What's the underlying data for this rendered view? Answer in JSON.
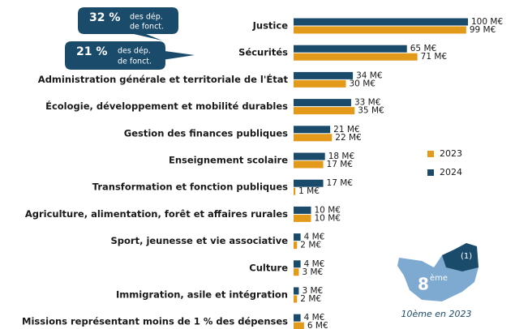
{
  "chart_data": {
    "type": "barh",
    "categories": [
      "Justice",
      "Sécurités",
      "Administration générale et territoriale de l'État",
      "Écologie, développement et mobilité durables",
      "Gestion des finances publiques",
      "Enseignement scolaire",
      "Transformation et fonction publiques",
      "Agriculture, alimentation, forêt et affaires rurales",
      "Sport, jeunesse et vie associative",
      "Culture",
      "Immigration, asile et intégration",
      "Missions représentant moins de 1 % des dépenses"
    ],
    "series": [
      {
        "name": "2023",
        "color": "#e39a1a",
        "values": [
          99,
          71,
          30,
          35,
          22,
          17,
          1,
          10,
          2,
          3,
          2,
          6
        ],
        "value_labels": [
          "99 M€",
          "71 M€",
          "30 M€",
          "35 M€",
          "22 M€",
          "17 M€",
          "1 M€",
          "10 M€",
          "2 M€",
          "3 M€",
          "2 M€",
          "6 M€"
        ]
      },
      {
        "name": "2024",
        "color": "#1b4b6b",
        "values": [
          100,
          65,
          34,
          33,
          21,
          18,
          17,
          10,
          4,
          4,
          3,
          4
        ],
        "value_labels": [
          "100 M€",
          "65 M€",
          "34 M€",
          "33 M€",
          "21 M€",
          "18 M€",
          "17 M€",
          "10 M€",
          "4 M€",
          "4 M€",
          "3 M€",
          "4 M€"
        ]
      }
    ],
    "legend": "right",
    "annotations": [
      {
        "value": "32 %",
        "line1": "des dép.",
        "line2": "de fonct."
      },
      {
        "value": "21 %",
        "line1": "des dép.",
        "line2": "de fonct."
      }
    ],
    "map": {
      "rank": "8",
      "suffix": "ème",
      "note": "(1)",
      "caption": "10ème en 2023"
    }
  }
}
